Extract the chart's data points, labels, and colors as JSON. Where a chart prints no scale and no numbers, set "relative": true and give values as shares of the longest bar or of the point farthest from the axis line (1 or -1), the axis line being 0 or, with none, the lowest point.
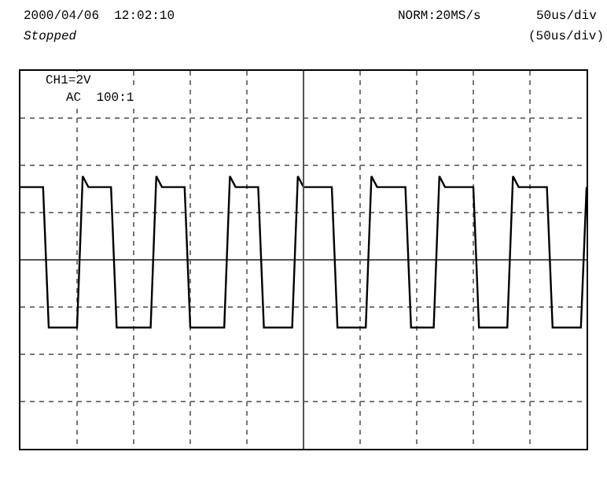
{
  "chart_data": {
    "type": "line",
    "relative": true,
    "grid": true,
    "marker": "none",
    "line_style": "solid",
    "categories": [
      null,
      null,
      null,
      null,
      null,
      null,
      null,
      null,
      null,
      null,
      null,
      null,
      null,
      null,
      null,
      null,
      null,
      null,
      null,
      null,
      null,
      null,
      null,
      null,
      null,
      null,
      null,
      null,
      null,
      null,
      null,
      null,
      null,
      null,
      null,
      null,
      null,
      null,
      null,
      null,
      null,
      null,
      null,
      null,
      null,
      null,
      null,
      null,
      null,
      null,
      null,
      null,
      null,
      null,
      null,
      null,
      null,
      null,
      null,
      null,
      null,
      null,
      null,
      null,
      null,
      null,
      null,
      null,
      null,
      null,
      null,
      null,
      null,
      null,
      null,
      null,
      null,
      null,
      null,
      null,
      null,
      null,
      null,
      null,
      null,
      null,
      null,
      null,
      null,
      null,
      null,
      null,
      null,
      null,
      null,
      null,
      null,
      null,
      null,
      null,
      null
    ],
    "annotations": [
      "2000/04/06  12:02:10",
      "Stopped",
      "NORM:20MS/s",
      "50us/div",
      "(50us/div)",
      "CH1=2V",
      "AC  100:1"
    ],
    "series": [
      {
        "color": "#000000",
        "values": [
          0.87,
          0.87,
          0.87,
          0.87,
          0.87,
          -0.81,
          -0.81,
          -0.81,
          -0.81,
          -0.81,
          -0.81,
          1.0,
          0.87,
          0.87,
          0.87,
          0.87,
          0.87,
          -0.81,
          -0.81,
          -0.81,
          -0.81,
          -0.81,
          -0.81,
          -0.81,
          1.0,
          0.87,
          0.87,
          0.87,
          0.87,
          0.87,
          -0.81,
          -0.81,
          -0.81,
          -0.81,
          -0.81,
          -0.81,
          -0.81,
          1.0,
          0.87,
          0.87,
          0.87,
          0.87,
          0.87,
          -0.81,
          -0.81,
          -0.81,
          -0.81,
          -0.81,
          -0.81,
          1.0,
          0.87,
          0.87,
          0.87,
          0.87,
          0.87,
          0.87,
          -0.81,
          -0.81,
          -0.81,
          -0.81,
          -0.81,
          -0.81,
          1.0,
          0.87,
          0.87,
          0.87,
          0.87,
          0.87,
          0.87,
          -0.81,
          -0.81,
          -0.81,
          -0.81,
          -0.81,
          1.0,
          0.87,
          0.87,
          0.87,
          0.87,
          0.87,
          0.87,
          -0.81,
          -0.81,
          -0.81,
          -0.81,
          -0.81,
          -0.81,
          1.0,
          0.87,
          0.87,
          0.87,
          0.87,
          0.87,
          0.87,
          -0.81,
          -0.81,
          -0.81,
          -0.81,
          -0.81,
          -0.81,
          0.87
        ]
      }
    ]
  }
}
